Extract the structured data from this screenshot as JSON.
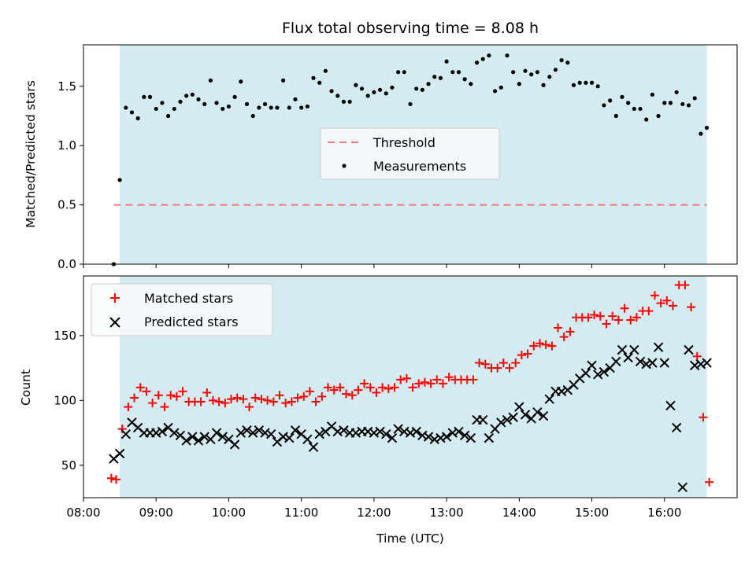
{
  "colors": {
    "observing_band": "#d3ebf1",
    "threshold": "#f07a7a",
    "measurements": "#000000",
    "matched": "#ff0000",
    "predicted": "#000000"
  },
  "chart_data": [
    {
      "type": "scatter",
      "title": "Flux total observing time = 8.08 h",
      "xlabel": "",
      "ylabel": "Matched/Predicted stars",
      "xlim": [
        "08:00",
        "17:00"
      ],
      "ylim": [
        0,
        1.85
      ],
      "yticks": [
        "0.0",
        "0.5",
        "1.0",
        "1.5"
      ],
      "x_tick_labels_shown": false,
      "observing_window": [
        "08:30",
        "16:35"
      ],
      "legend": {
        "placement": "center",
        "entries": [
          "Threshold",
          "Measurements"
        ]
      },
      "threshold": {
        "name": "Threshold",
        "value": 0.5,
        "x_range": [
          "08:25",
          "16:35"
        ]
      },
      "series": [
        {
          "name": "Measurements",
          "x": [
            "08:25",
            "08:30",
            "08:35",
            "08:40",
            "08:45",
            "08:50",
            "08:55",
            "09:00",
            "09:05",
            "09:10",
            "09:15",
            "09:20",
            "09:25",
            "09:30",
            "09:35",
            "09:40",
            "09:45",
            "09:50",
            "09:55",
            "10:00",
            "10:05",
            "10:10",
            "10:15",
            "10:20",
            "10:25",
            "10:30",
            "10:35",
            "10:40",
            "10:45",
            "10:50",
            "10:55",
            "11:00",
            "11:05",
            "11:10",
            "11:15",
            "11:20",
            "11:25",
            "11:30",
            "11:35",
            "11:40",
            "11:45",
            "11:50",
            "11:55",
            "12:00",
            "12:05",
            "12:10",
            "12:15",
            "12:20",
            "12:25",
            "12:30",
            "12:35",
            "12:40",
            "12:45",
            "12:50",
            "12:55",
            "13:00",
            "13:05",
            "13:10",
            "13:15",
            "13:20",
            "13:25",
            "13:30",
            "13:35",
            "13:40",
            "13:45",
            "13:50",
            "13:55",
            "14:00",
            "14:05",
            "14:10",
            "14:15",
            "14:20",
            "14:25",
            "14:30",
            "14:35",
            "14:40",
            "14:45",
            "14:50",
            "14:55",
            "15:00",
            "15:05",
            "15:10",
            "15:15",
            "15:20",
            "15:25",
            "15:30",
            "15:35",
            "15:40",
            "15:45",
            "15:50",
            "15:55",
            "16:00",
            "16:05",
            "16:10",
            "16:15",
            "16:20",
            "16:25",
            "16:30",
            "16:35"
          ],
          "values": [
            0.0,
            0.71,
            1.32,
            1.28,
            1.23,
            1.41,
            1.41,
            1.31,
            1.36,
            1.25,
            1.31,
            1.37,
            1.42,
            1.43,
            1.39,
            1.35,
            1.55,
            1.36,
            1.31,
            1.33,
            1.41,
            1.54,
            1.35,
            1.25,
            1.32,
            1.35,
            1.32,
            1.32,
            1.55,
            1.32,
            1.39,
            1.32,
            1.33,
            1.57,
            1.53,
            1.63,
            1.46,
            1.42,
            1.37,
            1.37,
            1.51,
            1.48,
            1.42,
            1.45,
            1.47,
            1.44,
            1.49,
            1.62,
            1.62,
            1.35,
            1.48,
            1.47,
            1.52,
            1.58,
            1.57,
            1.71,
            1.62,
            1.62,
            1.56,
            1.52,
            1.7,
            1.73,
            1.76,
            1.46,
            1.49,
            1.76,
            1.62,
            1.52,
            1.63,
            1.6,
            1.62,
            1.51,
            1.58,
            1.64,
            1.72,
            1.7,
            1.51,
            1.53,
            1.53,
            1.53,
            1.5,
            1.34,
            1.38,
            1.25,
            1.41,
            1.36,
            1.31,
            1.31,
            1.22,
            1.43,
            1.25,
            1.36,
            1.36,
            1.45,
            1.35,
            1.34,
            1.4,
            1.1,
            1.15
          ]
        }
      ]
    },
    {
      "type": "scatter",
      "title": "",
      "xlabel": "Time (UTC)",
      "ylabel": "Count",
      "xlim": [
        "08:00",
        "17:00"
      ],
      "ylim": [
        25,
        196
      ],
      "xticks": [
        "08:00",
        "09:00",
        "10:00",
        "11:00",
        "12:00",
        "13:00",
        "14:00",
        "15:00",
        "16:00"
      ],
      "yticks": [
        "50",
        "100",
        "150"
      ],
      "observing_window": [
        "08:30",
        "16:35"
      ],
      "legend": {
        "placement": "upper left",
        "entries": [
          "Matched stars",
          "Predicted stars"
        ]
      },
      "series": [
        {
          "name": "Matched stars",
          "x": [
            "08:23",
            "08:27",
            "08:32",
            "08:37",
            "08:42",
            "08:47",
            "08:52",
            "08:57",
            "09:02",
            "09:07",
            "09:12",
            "09:17",
            "09:22",
            "09:27",
            "09:32",
            "09:37",
            "09:42",
            "09:47",
            "09:52",
            "09:57",
            "10:02",
            "10:07",
            "10:12",
            "10:17",
            "10:22",
            "10:27",
            "10:32",
            "10:37",
            "10:42",
            "10:47",
            "10:52",
            "10:57",
            "11:02",
            "11:07",
            "11:12",
            "11:17",
            "11:22",
            "11:27",
            "11:32",
            "11:37",
            "11:42",
            "11:47",
            "11:52",
            "11:57",
            "12:02",
            "12:07",
            "12:12",
            "12:17",
            "12:22",
            "12:27",
            "12:32",
            "12:37",
            "12:42",
            "12:47",
            "12:52",
            "12:57",
            "13:02",
            "13:07",
            "13:12",
            "13:17",
            "13:22",
            "13:27",
            "13:32",
            "13:37",
            "13:42",
            "13:47",
            "13:52",
            "13:57",
            "14:02",
            "14:07",
            "14:12",
            "14:17",
            "14:22",
            "14:27",
            "14:32",
            "14:37",
            "14:42",
            "14:47",
            "14:52",
            "14:57",
            "15:02",
            "15:07",
            "15:12",
            "15:17",
            "15:22",
            "15:27",
            "15:32",
            "15:37",
            "15:42",
            "15:47",
            "15:52",
            "15:57",
            "16:02",
            "16:07",
            "16:12",
            "16:17",
            "16:22",
            "16:27",
            "16:32",
            "16:37"
          ],
          "values": [
            40,
            39,
            78,
            95,
            102,
            110,
            107,
            98,
            104,
            95,
            104,
            103,
            107,
            99,
            99,
            99,
            106,
            100,
            99,
            98,
            101,
            102,
            101,
            95,
            102,
            101,
            100,
            99,
            104,
            98,
            99,
            102,
            103,
            107,
            99,
            103,
            110,
            108,
            110,
            105,
            104,
            108,
            113,
            110,
            106,
            110,
            109,
            110,
            116,
            117,
            110,
            113,
            114,
            113,
            116,
            113,
            118,
            116,
            116,
            116,
            116,
            129,
            128,
            125,
            125,
            129,
            125,
            129,
            135,
            136,
            142,
            144,
            143,
            142,
            156,
            149,
            153,
            164,
            164,
            164,
            166,
            165,
            159,
            165,
            162,
            171,
            162,
            164,
            169,
            169,
            181,
            175,
            177,
            173,
            189,
            189,
            172,
            134,
            87,
            37
          ]
        },
        {
          "name": "Predicted stars",
          "x": [
            "08:25",
            "08:30",
            "08:35",
            "08:40",
            "08:45",
            "08:50",
            "08:55",
            "09:00",
            "09:05",
            "09:10",
            "09:15",
            "09:20",
            "09:25",
            "09:30",
            "09:35",
            "09:40",
            "09:45",
            "09:50",
            "09:55",
            "10:00",
            "10:05",
            "10:10",
            "10:15",
            "10:20",
            "10:25",
            "10:30",
            "10:35",
            "10:40",
            "10:45",
            "10:50",
            "10:55",
            "11:00",
            "11:05",
            "11:10",
            "11:15",
            "11:20",
            "11:25",
            "11:30",
            "11:35",
            "11:40",
            "11:45",
            "11:50",
            "11:55",
            "12:00",
            "12:05",
            "12:10",
            "12:15",
            "12:20",
            "12:25",
            "12:30",
            "12:35",
            "12:40",
            "12:45",
            "12:50",
            "12:55",
            "13:00",
            "13:05",
            "13:10",
            "13:15",
            "13:20",
            "13:25",
            "13:30",
            "13:35",
            "13:40",
            "13:45",
            "13:50",
            "13:55",
            "14:00",
            "14:05",
            "14:10",
            "14:15",
            "14:20",
            "14:25",
            "14:30",
            "14:35",
            "14:40",
            "14:45",
            "14:50",
            "14:55",
            "15:00",
            "15:05",
            "15:10",
            "15:15",
            "15:20",
            "15:25",
            "15:30",
            "15:35",
            "15:40",
            "15:45",
            "15:50",
            "15:55",
            "16:00",
            "16:05",
            "16:10",
            "16:15",
            "16:20",
            "16:25",
            "16:30",
            "16:35"
          ],
          "values": [
            55,
            59,
            74,
            83,
            79,
            75,
            75,
            75,
            76,
            79,
            75,
            73,
            69,
            72,
            69,
            72,
            70,
            75,
            72,
            70,
            66,
            75,
            77,
            75,
            77,
            75,
            74,
            68,
            72,
            71,
            77,
            74,
            70,
            64,
            74,
            76,
            80,
            76,
            77,
            75,
            75,
            76,
            76,
            75,
            76,
            74,
            71,
            78,
            76,
            75,
            76,
            73,
            72,
            70,
            71,
            72,
            75,
            76,
            73,
            71,
            85,
            85,
            71,
            78,
            83,
            85,
            87,
            95,
            89,
            86,
            91,
            88,
            101,
            107,
            107,
            108,
            112,
            117,
            121,
            127,
            120,
            122,
            125,
            130,
            139,
            133,
            139,
            130,
            128,
            129,
            141,
            129,
            96,
            79,
            33,
            139,
            127,
            128,
            129
          ]
        }
      ]
    }
  ]
}
